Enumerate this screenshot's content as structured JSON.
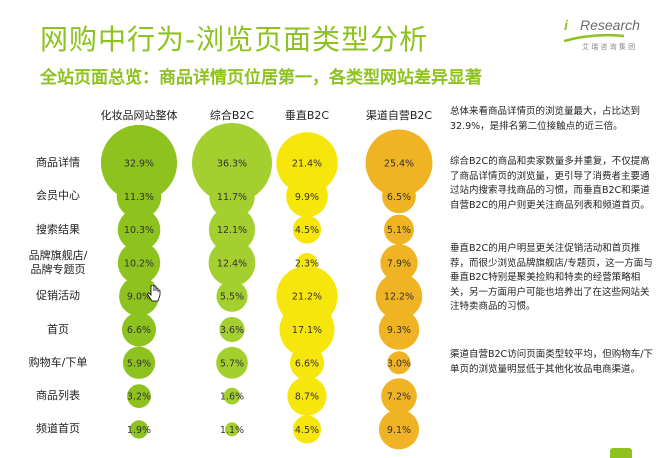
{
  "header": {
    "title": "网购中行为-浏览页面类型分析",
    "subtitle": "全站页面总览：商品详情页位居第一，各类型网站差异显著"
  },
  "logo": {
    "brand": "Research",
    "brand_prefix": "i",
    "tagline": "艾 瑞 咨 询 集 团"
  },
  "colors": {
    "accent": "#8dc21f",
    "series": [
      "#8dc21f",
      "#a3cf2f",
      "#f7e60c",
      "#f0b324"
    ]
  },
  "notes": [
    "总体来看商品详情页的浏览量最大，占比达到32.9%，是排名第二位接触点的近三倍。",
    "综合B2C的商品和卖家数量多并重复，不仅提高了商品详情页的浏览量，更引导了消费者主要通过站内搜索寻找商品的习惯，而垂直B2C和渠道自营B2C的用户则更关注商品列表和频道首页。",
    "垂直B2C的用户明显更关注促销活动和首页推荐，而很少浏览品牌旗舰店/专题页，这一方面与垂直B2C特别是聚美捡购和特卖的经营策略相关，另一方面用户可能也培养出了在这些网站关注特卖商品的习惯。",
    "渠道自营B2C访问页面类型较平均，但购物车/下单页的浏览量明显低于其他化妆品电商渠道。"
  ],
  "chart_data": {
    "type": "bubble-matrix",
    "title": "网购中行为-浏览页面类型分析",
    "categories": [
      "商品详情",
      "会员中心",
      "搜索结果",
      "品牌旗舰店/\n品牌专题页",
      "促销活动",
      "首页",
      "购物车/下单",
      "商品列表",
      "频道首页"
    ],
    "series": [
      {
        "name": "化妆品网站整体",
        "values": [
          32.9,
          11.3,
          10.3,
          10.2,
          9.0,
          6.6,
          5.9,
          3.2,
          1.9
        ],
        "labels": [
          "32.9%",
          "11.3%",
          "10.3%",
          "10.2%",
          "9.0%",
          "6.6%",
          "5.9%",
          "3.2%",
          "1.9%"
        ]
      },
      {
        "name": "综合B2C",
        "values": [
          36.3,
          11.7,
          12.1,
          12.4,
          5.5,
          3.6,
          5.7,
          1.6,
          1.1
        ],
        "labels": [
          "36.3%",
          "11.7%",
          "12.1%",
          "12.4%",
          "5.5%",
          "3.6%",
          "5.7%",
          "1.6%",
          "1.1%"
        ]
      },
      {
        "name": "垂直B2C",
        "values": [
          21.4,
          9.9,
          4.5,
          2.3,
          21.2,
          17.1,
          6.6,
          8.7,
          4.5
        ],
        "labels": [
          "21.4%",
          "9.9%",
          "4.5%",
          "2.3%",
          "21.2%",
          "17.1%",
          "6.6%",
          "8.7%",
          "4.5%"
        ]
      },
      {
        "name": "渠道自营B2C",
        "values": [
          25.4,
          6.5,
          5.1,
          7.9,
          12.2,
          9.3,
          3.0,
          7.2,
          9.1
        ],
        "labels": [
          "25.4%",
          "6.5%",
          "5.1%",
          "7.9%",
          "12.2%",
          "9.3%",
          "3.0%",
          "7.2%",
          "9.1%"
        ]
      }
    ]
  }
}
